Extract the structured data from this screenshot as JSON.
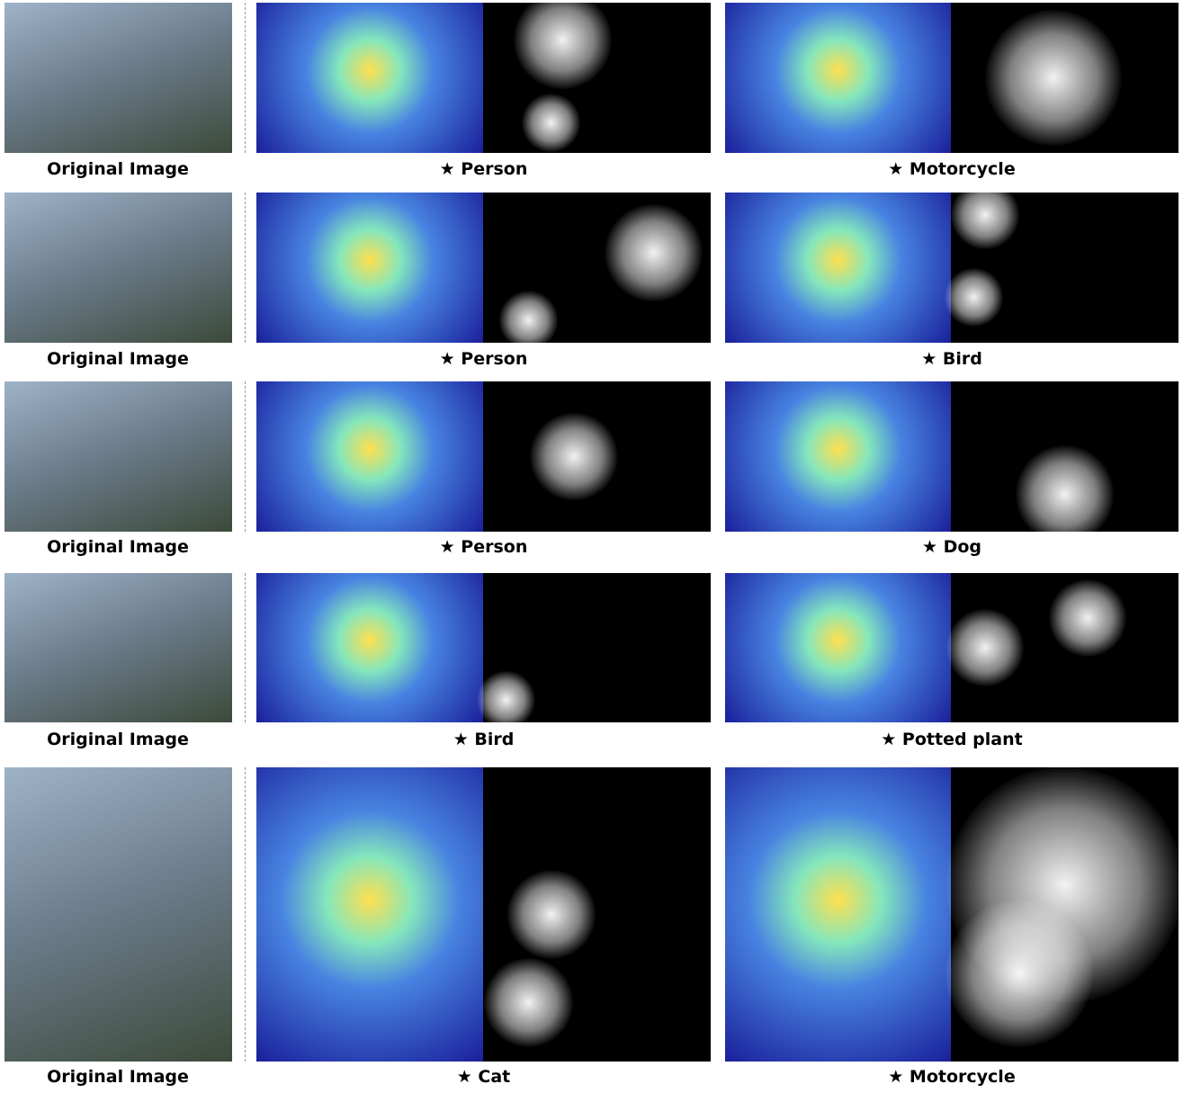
{
  "rows": [
    {
      "original": "Original Image",
      "targets": [
        "★ Person",
        "★ Motorcycle"
      ]
    },
    {
      "original": "Original Image",
      "targets": [
        "★ Person",
        "★ Bird"
      ]
    },
    {
      "original": "Original Image",
      "targets": [
        "★ Person",
        "★ Dog"
      ]
    },
    {
      "original": "Original Image",
      "targets": [
        "★ Bird",
        "★ Potted plant"
      ]
    },
    {
      "original": "Original Image",
      "targets": [
        "★ Cat",
        "★ Motorcycle"
      ]
    }
  ]
}
